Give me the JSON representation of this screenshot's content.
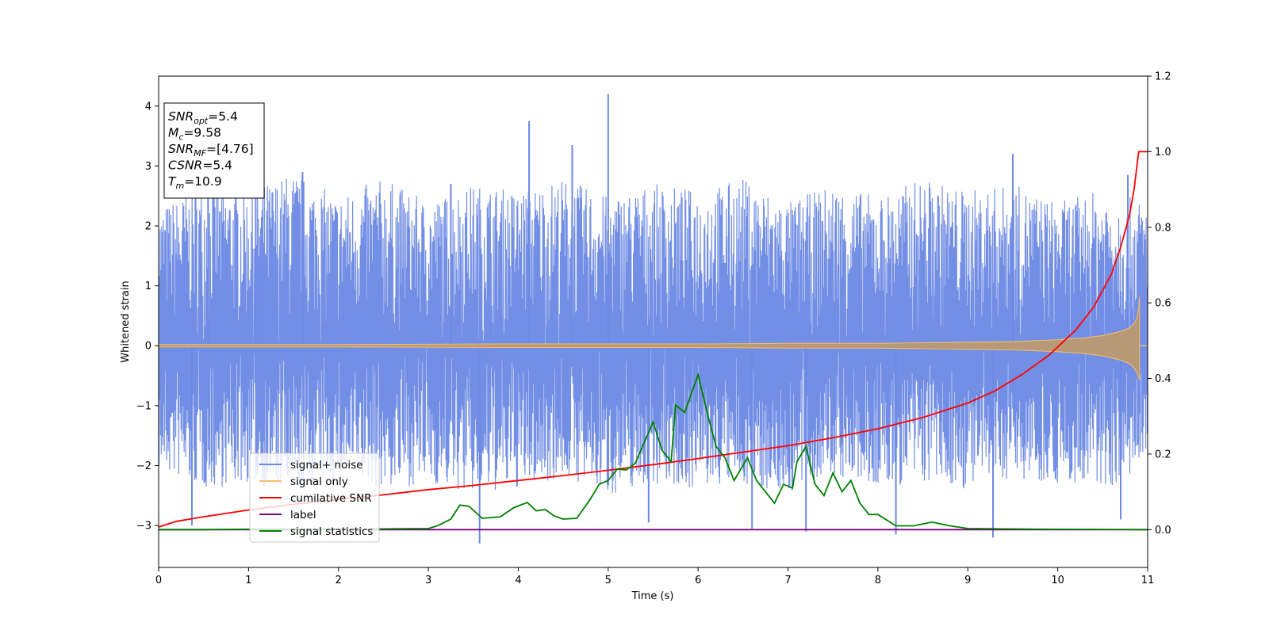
{
  "chart_data": {
    "type": "line",
    "title": "",
    "xlabel": "Time (s)",
    "ylabel": "Whitened strain",
    "xlim": [
      0,
      11
    ],
    "ylim": [
      -3.7,
      4.5
    ],
    "y2lim": [
      -0.1,
      1.2
    ],
    "x_ticks": [
      0,
      1,
      2,
      3,
      4,
      5,
      6,
      7,
      8,
      9,
      10,
      11
    ],
    "y_ticks": [
      -3,
      -2,
      -1,
      0,
      1,
      2,
      3,
      4
    ],
    "y_tick_labels": [
      "−3",
      "−2",
      "−1",
      "0",
      "1",
      "2",
      "3",
      "4"
    ],
    "y2_ticks": [
      0.0,
      0.2,
      0.4,
      0.6,
      0.8,
      1.0,
      1.2
    ],
    "y2_tick_labels": [
      "0.0",
      "0.2",
      "0.4",
      "0.6",
      "0.8",
      "1.0",
      "1.2"
    ],
    "grid": false,
    "legend_position": "lower-left",
    "series": [
      {
        "name": "signal+ noise",
        "axis": "left",
        "color": "#6c89e4",
        "envelope": true,
        "x": [
          0.0,
          0.5,
          1.0,
          1.5,
          2.0,
          2.5,
          3.0,
          3.5,
          4.0,
          4.5,
          5.0,
          5.5,
          6.0,
          6.5,
          7.0,
          7.5,
          8.0,
          8.5,
          9.0,
          9.5,
          10.0,
          10.5,
          11.0
        ],
        "upper": [
          2.3,
          2.7,
          2.6,
          2.9,
          2.5,
          2.8,
          2.4,
          2.7,
          2.6,
          2.8,
          2.5,
          2.7,
          2.6,
          2.8,
          2.4,
          2.7,
          2.5,
          2.8,
          2.6,
          2.7,
          2.4,
          2.6,
          2.4
        ],
        "lower": [
          -2.1,
          -2.4,
          -2.3,
          -2.5,
          -2.2,
          -2.4,
          -2.3,
          -2.5,
          -2.4,
          -2.2,
          -2.5,
          -2.3,
          -2.4,
          -2.3,
          -2.5,
          -2.2,
          -2.4,
          -2.3,
          -2.4,
          -2.2,
          -2.3,
          -2.4,
          -2.1
        ],
        "spikes": [
          {
            "x": 0.37,
            "y": -3.0
          },
          {
            "x": 0.55,
            "y": 2.9
          },
          {
            "x": 1.08,
            "y": 2.95
          },
          {
            "x": 1.6,
            "y": 2.9
          },
          {
            "x": 3.25,
            "y": 2.7
          },
          {
            "x": 3.57,
            "y": -3.3
          },
          {
            "x": 4.12,
            "y": 3.75
          },
          {
            "x": 4.6,
            "y": 3.35
          },
          {
            "x": 5.0,
            "y": 4.2
          },
          {
            "x": 5.45,
            "y": -2.95
          },
          {
            "x": 6.6,
            "y": -3.05
          },
          {
            "x": 7.2,
            "y": -3.1
          },
          {
            "x": 8.2,
            "y": -3.15
          },
          {
            "x": 9.28,
            "y": -3.2
          },
          {
            "x": 9.5,
            "y": 3.2
          },
          {
            "x": 10.7,
            "y": -2.9
          },
          {
            "x": 10.78,
            "y": 2.85
          }
        ]
      },
      {
        "name": "signal only",
        "axis": "left",
        "color": "#f5bd6b",
        "envelope": true,
        "x": [
          0.0,
          2.0,
          4.0,
          6.0,
          7.0,
          8.0,
          8.5,
          9.0,
          9.5,
          10.0,
          10.3,
          10.5,
          10.7,
          10.8,
          10.85,
          10.88,
          10.9,
          10.91
        ],
        "upper": [
          0.02,
          0.02,
          0.03,
          0.03,
          0.04,
          0.04,
          0.05,
          0.06,
          0.07,
          0.1,
          0.13,
          0.17,
          0.24,
          0.3,
          0.37,
          0.46,
          0.65,
          0.82
        ],
        "lower": [
          -0.02,
          -0.02,
          -0.03,
          -0.03,
          -0.04,
          -0.04,
          -0.05,
          -0.06,
          -0.07,
          -0.1,
          -0.13,
          -0.17,
          -0.24,
          -0.3,
          -0.37,
          -0.46,
          -0.52,
          -0.58
        ]
      },
      {
        "name": "cumilative SNR",
        "axis": "right",
        "color": "#ff0000",
        "x": [
          0.0,
          0.2,
          0.5,
          1.0,
          1.5,
          2.0,
          2.5,
          3.0,
          3.5,
          4.0,
          4.5,
          5.0,
          5.5,
          6.0,
          6.5,
          7.0,
          7.5,
          8.0,
          8.5,
          9.0,
          9.3,
          9.6,
          9.9,
          10.2,
          10.4,
          10.6,
          10.7,
          10.8,
          10.85,
          10.9,
          11.0
        ],
        "y": [
          0.007,
          0.022,
          0.034,
          0.052,
          0.067,
          0.08,
          0.092,
          0.106,
          0.117,
          0.13,
          0.143,
          0.157,
          0.172,
          0.188,
          0.205,
          0.222,
          0.243,
          0.267,
          0.297,
          0.335,
          0.367,
          0.41,
          0.461,
          0.528,
          0.589,
          0.678,
          0.747,
          0.834,
          0.902,
          1.0,
          1.0
        ]
      },
      {
        "name": "label",
        "axis": "right",
        "color": "#800080",
        "x": [
          0.0,
          11.0
        ],
        "y": [
          0.0,
          0.0
        ]
      },
      {
        "name": "signal statistics",
        "axis": "right",
        "color": "#008000",
        "x": [
          0.0,
          0.5,
          1.0,
          2.0,
          2.5,
          3.0,
          3.1,
          3.25,
          3.35,
          3.45,
          3.6,
          3.8,
          3.95,
          4.1,
          4.2,
          4.3,
          4.4,
          4.5,
          4.65,
          4.8,
          4.9,
          5.0,
          5.1,
          5.2,
          5.3,
          5.4,
          5.5,
          5.6,
          5.7,
          5.75,
          5.85,
          6.0,
          6.1,
          6.2,
          6.3,
          6.4,
          6.5,
          6.55,
          6.65,
          6.75,
          6.85,
          6.95,
          7.05,
          7.1,
          7.2,
          7.3,
          7.4,
          7.5,
          7.6,
          7.7,
          7.8,
          7.9,
          8.0,
          8.2,
          8.4,
          8.6,
          8.8,
          9.0,
          9.4,
          9.8,
          11.0
        ],
        "y": [
          0.0,
          0.0,
          0.001,
          0.001,
          0.002,
          0.003,
          0.01,
          0.028,
          0.065,
          0.062,
          0.03,
          0.034,
          0.058,
          0.072,
          0.05,
          0.053,
          0.036,
          0.028,
          0.03,
          0.08,
          0.12,
          0.13,
          0.16,
          0.158,
          0.175,
          0.23,
          0.285,
          0.21,
          0.18,
          0.33,
          0.31,
          0.41,
          0.31,
          0.22,
          0.19,
          0.13,
          0.17,
          0.19,
          0.13,
          0.1,
          0.07,
          0.12,
          0.11,
          0.18,
          0.22,
          0.12,
          0.09,
          0.15,
          0.1,
          0.13,
          0.07,
          0.04,
          0.04,
          0.01,
          0.01,
          0.02,
          0.01,
          0.003,
          0.002,
          0.001,
          0.0
        ]
      }
    ]
  },
  "info_box": {
    "lines": [
      {
        "var": "SNR",
        "sub": "opt",
        "value": "=5.4"
      },
      {
        "var": "M",
        "sub": "c",
        "value": "=9.58"
      },
      {
        "var": "SNR",
        "sub": "MF",
        "value": "=[4.76]"
      },
      {
        "var": "CSNR",
        "sub": "",
        "value": "=5.4"
      },
      {
        "var": "T",
        "sub": "m",
        "value": "=10.9"
      }
    ]
  }
}
